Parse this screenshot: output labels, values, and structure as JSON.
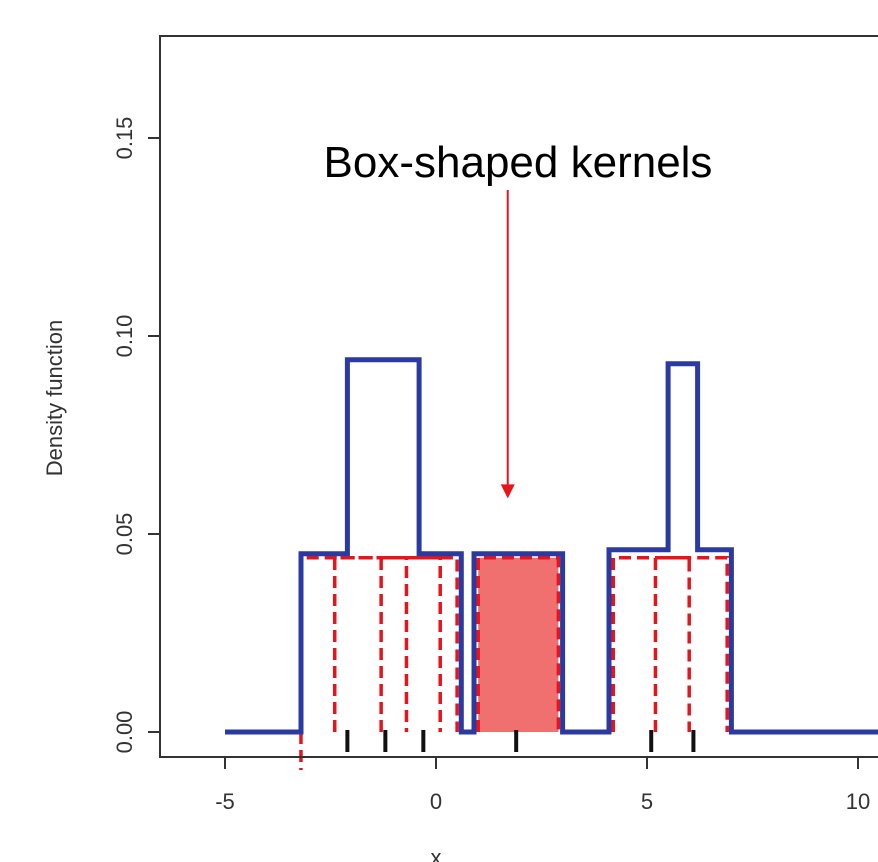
{
  "chart_data": {
    "type": "line",
    "title": "",
    "xlabel": "x",
    "ylabel": "Density function",
    "xlim": [
      -7,
      10.5
    ],
    "ylim": [
      -0.006,
      0.178
    ],
    "x_ticks": [
      -5,
      0,
      5,
      10
    ],
    "x_tick_labels": [
      "-5",
      "0",
      "5",
      "10"
    ],
    "y_ticks": [
      0.0,
      0.05,
      0.1,
      0.15
    ],
    "y_tick_labels": [
      "0.00",
      "0.05",
      "0.10",
      "0.15"
    ],
    "grid": false,
    "colors": {
      "density": "#2b3aa0",
      "kernel": "#e8141c",
      "highlight_fill": "#f07070",
      "axis": "#333333"
    },
    "series": [
      {
        "x": [
          -5.0,
          -3.2,
          -3.2,
          -2.1,
          -2.1,
          -0.4,
          -0.4,
          0.6,
          0.6,
          0.9,
          0.9,
          3.0,
          3.0,
          4.1,
          4.1,
          5.5,
          5.5,
          6.2,
          6.2,
          7.0,
          7.0,
          10.5
        ],
        "y": [
          0,
          0,
          0.045,
          0.045,
          0.094,
          0.094,
          0.045,
          0.045,
          0,
          0,
          0.045,
          0.045,
          0,
          0,
          0.046,
          0.046,
          0.093,
          0.093,
          0.046,
          0.046,
          0,
          0
        ]
      }
    ],
    "kernels": [
      {
        "x0": -3.2,
        "x1": -0.7,
        "height": 0.044
      },
      {
        "x0": -2.4,
        "x1": 0.1,
        "height": 0.044
      },
      {
        "x0": -1.3,
        "x1": 0.5,
        "height": 0.044
      },
      {
        "x0": 1.0,
        "x1": 2.9,
        "height": 0.044,
        "highlighted": true
      },
      {
        "x0": 4.2,
        "x1": 6.0,
        "height": 0.044
      },
      {
        "x0": 5.2,
        "x1": 6.9,
        "height": 0.044
      }
    ],
    "rug": [
      -2.1,
      -1.2,
      -0.3,
      1.9,
      5.1,
      6.1
    ],
    "annotations": [
      {
        "text": "Box-shaped kernels",
        "target_x": 1.7,
        "target_y": 0.059
      }
    ]
  }
}
